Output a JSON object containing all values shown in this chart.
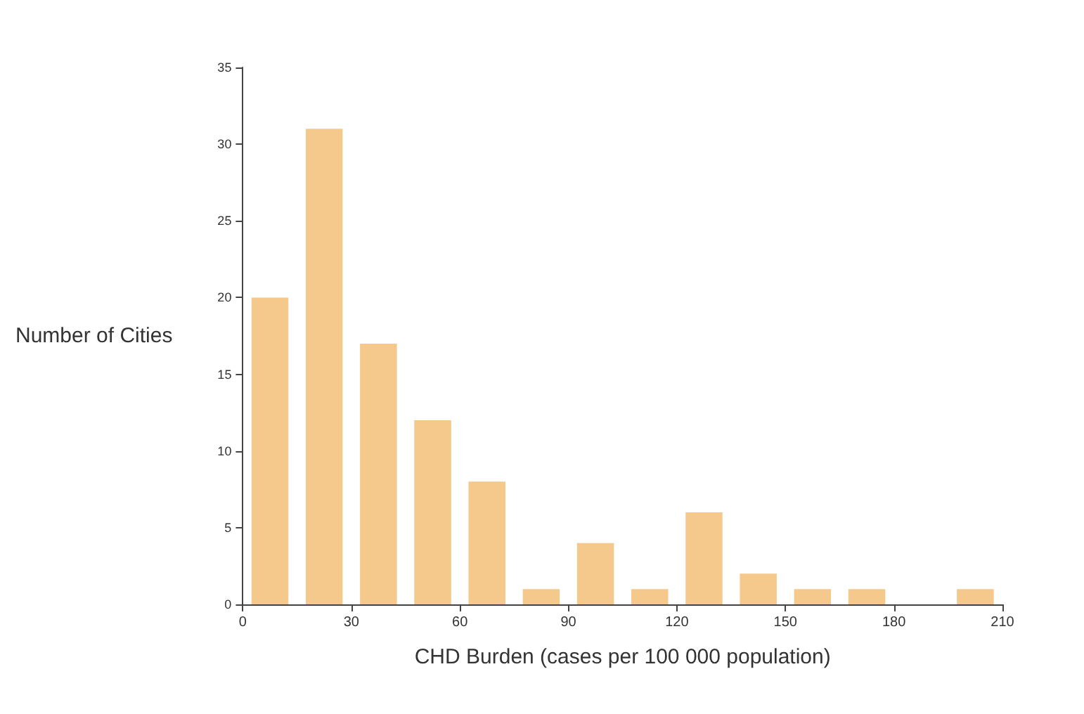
{
  "chart_data": {
    "type": "histogram",
    "xlabel": "CHD Burden (cases per 100 000 population)",
    "ylabel": "Number of Cities",
    "bins": [
      0,
      15,
      30,
      45,
      60,
      75,
      90,
      105,
      120,
      135,
      150,
      165,
      180,
      195,
      210
    ],
    "values": [
      20,
      31,
      17,
      12,
      8,
      1,
      4,
      1,
      6,
      2,
      1,
      1,
      0,
      1
    ],
    "color": "#f5c88c",
    "xlim": [
      0,
      210
    ],
    "xticks": [
      0,
      30,
      60,
      90,
      120,
      150,
      180,
      210
    ],
    "ylim": [
      0,
      35
    ],
    "yticks": [
      0,
      5,
      10,
      15,
      20,
      25,
      30,
      35
    ],
    "grid": false
  }
}
